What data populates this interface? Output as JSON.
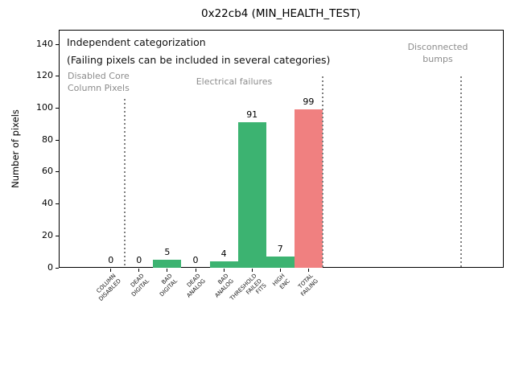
{
  "window": {
    "background": "#ffffff"
  },
  "colors": {
    "bar_green": "#3cb371",
    "bar_red": "#f08080",
    "annotation_gray": "#8c8c8c",
    "separator_gray": "#7f7f7f",
    "axis_black": "#000000"
  },
  "chart_data": {
    "type": "bar",
    "title": "0x22cb4 (MIN_HEALTH_TEST)",
    "ylabel": "Number of pixels",
    "xlabel": "",
    "grid": false,
    "legend": null,
    "categories": [
      "COLUMN\nDISABLED",
      "DEAD\nDIGITAL",
      "BAD\nDIGITAL",
      "DEAD\nANALOG",
      "BAD\nANALOG",
      "THRESHOLD\nFAILED\nFITS",
      "HIGH\nENC",
      "TOTAL\nFAILING"
    ],
    "values": [
      0,
      0,
      5,
      0,
      4,
      91,
      7,
      99
    ],
    "value_labels": [
      "0",
      "0",
      "5",
      "0",
      "4",
      "91",
      "7",
      "99"
    ],
    "bar_colors": [
      "#3cb371",
      "#3cb371",
      "#3cb371",
      "#3cb371",
      "#3cb371",
      "#3cb371",
      "#3cb371",
      "#f08080"
    ],
    "yticks": [
      0,
      20,
      40,
      60,
      80,
      100,
      120,
      140
    ],
    "ylim": [
      0,
      149
    ],
    "annotations": {
      "independent": "Independent categorization",
      "failing_note": "(Failing pixels can be included in several categories)",
      "disabled_core": "Disabled Core\nColumn Pixels",
      "electrical": "Electrical failures",
      "disconnected": "Disconnected\nbumps"
    },
    "separators": [
      {
        "x_category": 0.5,
        "y_top_value": 106,
        "style": "dotted",
        "color": "#7f7f7f"
      },
      {
        "x_category": 7.5,
        "y_top_value": 120,
        "style": "dotted",
        "color": "#7f7f7f"
      },
      {
        "x_category": 12.4,
        "y_top_value": 120,
        "style": "dotted",
        "color": "#7f7f7f"
      }
    ]
  }
}
